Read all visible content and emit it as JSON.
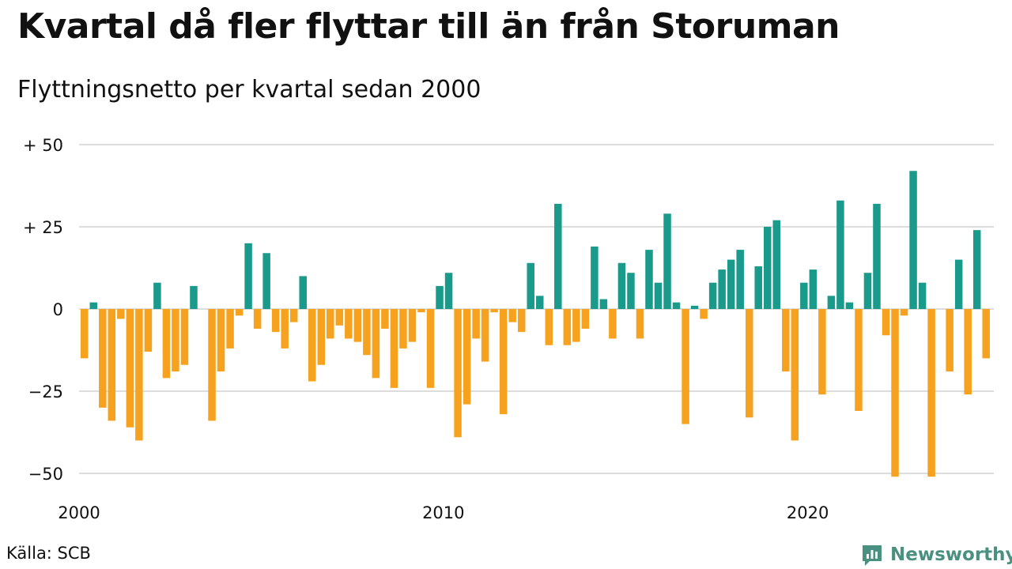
{
  "title": "Kvartal då fler flyttar till än från Storuman",
  "subtitle": "Flyttningsnetto per kvartal sedan 2000",
  "source": "Källa: SCB",
  "brand": {
    "name": "Newsworthy",
    "color": "#4a9080"
  },
  "colors": {
    "positive": "#1a9a8a",
    "negative": "#f6a21e",
    "grid": "#dddddd"
  },
  "chart_data": {
    "type": "bar",
    "y_tick_values": [
      50,
      25,
      0,
      -25,
      -50
    ],
    "y_tick_labels": [
      "+ 50",
      "+ 25",
      "0",
      "−25",
      "−50"
    ],
    "ylim": [
      -52,
      50
    ],
    "x_tick_labels": [
      "2000",
      "2010",
      "2020"
    ],
    "x_tick_positions": [
      0,
      40,
      80
    ],
    "values": [
      -15,
      2,
      -30,
      -34,
      -3,
      -36,
      -40,
      -13,
      8,
      -21,
      -19,
      -17,
      7,
      0,
      -34,
      -19,
      -12,
      -2,
      20,
      -6,
      17,
      -7,
      -12,
      -4,
      10,
      -22,
      -17,
      -9,
      -5,
      -9,
      -10,
      -14,
      -21,
      -6,
      -24,
      -12,
      -10,
      -1,
      -24,
      7,
      11,
      -39,
      -29,
      -9,
      -16,
      -1,
      -32,
      -4,
      -7,
      14,
      4,
      -11,
      32,
      -11,
      -10,
      -6,
      19,
      3,
      -9,
      14,
      11,
      -9,
      18,
      8,
      29,
      2,
      -35,
      1,
      -3,
      8,
      12,
      15,
      18,
      -33,
      13,
      25,
      27,
      -19,
      -40,
      8,
      12,
      -26,
      4,
      33,
      2,
      -31,
      11,
      32,
      -8,
      -51,
      -2,
      42,
      8,
      -51,
      0,
      -19,
      15,
      -26,
      24,
      -15
    ]
  }
}
